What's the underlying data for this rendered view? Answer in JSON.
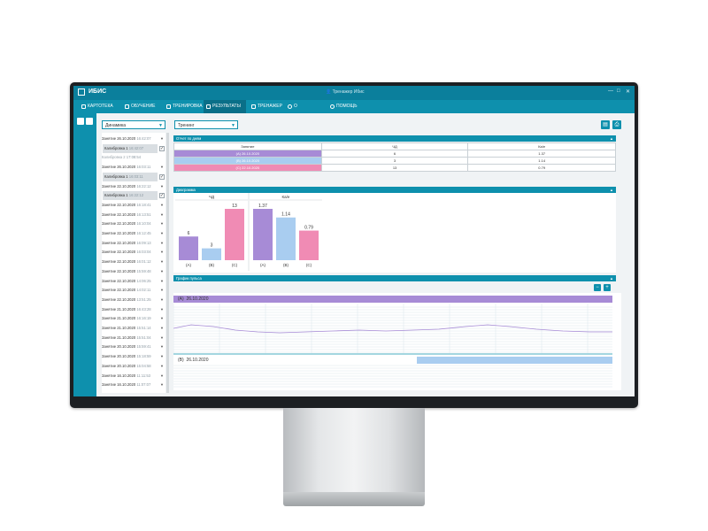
{
  "app": {
    "title": "ИБИС",
    "user": "Тренажер Ибис",
    "window_controls": [
      "—",
      "□",
      "✕"
    ]
  },
  "menu": [
    {
      "label": "КАРТОТЕКА",
      "icon": "card-icon"
    },
    {
      "label": "ОБУЧЕНИЕ",
      "icon": "book-icon"
    },
    {
      "label": "ТРЕНИРОВКА",
      "icon": "list-icon"
    },
    {
      "label": "РЕЗУЛЬТАТЫ",
      "icon": "chart-icon",
      "active": true
    },
    {
      "label": "ТРЕНАЖЕР",
      "icon": "device-icon"
    },
    {
      "label": "О ПРОГРАММЕ",
      "icon": "info-icon"
    },
    {
      "label": "ПОМОЩЬ",
      "icon": "help-icon"
    }
  ],
  "toolbar": {
    "mode_select": "Динамика",
    "type_select": "Тренинг"
  },
  "sessions": [
    {
      "name": "Занятие 26.10.2020",
      "time": "16:42:07",
      "type": "session"
    },
    {
      "name": "Калибровка 1",
      "time": "16:42:07",
      "type": "sub",
      "checked": true
    },
    {
      "name": "Калибровка 2",
      "time": "17:08:54",
      "type": "gray"
    },
    {
      "name": "Занятие 26.10.2020",
      "time": "16:03:11",
      "type": "session"
    },
    {
      "name": "Калибровка 1",
      "time": "16:03:11",
      "type": "sub",
      "checked": true
    },
    {
      "name": "Занятие 22.10.2020",
      "time": "16:22:12",
      "type": "session"
    },
    {
      "name": "Калибровка 1",
      "time": "16:22:12",
      "type": "sub",
      "checked": true
    },
    {
      "name": "Занятие 22.10.2020",
      "time": "16:18:41",
      "type": "session"
    },
    {
      "name": "Занятие 22.10.2020",
      "time": "16:13:51",
      "type": "session"
    },
    {
      "name": "Занятие 22.10.2020",
      "time": "16:10:04",
      "type": "session"
    },
    {
      "name": "Занятие 22.10.2020",
      "time": "16:12:45",
      "type": "session"
    },
    {
      "name": "Занятие 22.10.2020",
      "time": "16:09:13",
      "type": "session"
    },
    {
      "name": "Занятие 22.10.2020",
      "time": "16:03:04",
      "type": "session"
    },
    {
      "name": "Занятие 22.10.2020",
      "time": "16:01:12",
      "type": "session"
    },
    {
      "name": "Занятие 22.10.2020",
      "time": "15:59:48",
      "type": "session"
    },
    {
      "name": "Занятие 22.10.2020",
      "time": "14:06:25",
      "type": "session"
    },
    {
      "name": "Занятие 22.10.2020",
      "time": "14:02:11",
      "type": "session"
    },
    {
      "name": "Занятие 22.10.2020",
      "time": "13:51:25",
      "type": "session"
    },
    {
      "name": "Занятие 21.10.2020",
      "time": "16:43:28",
      "type": "session"
    },
    {
      "name": "Занятие 21.10.2020",
      "time": "16:16:19",
      "type": "session"
    },
    {
      "name": "Занятие 21.10.2020",
      "time": "15:51:14",
      "type": "session"
    },
    {
      "name": "Занятие 21.10.2020",
      "time": "15:51:04",
      "type": "session"
    },
    {
      "name": "Занятие 20.10.2020",
      "time": "15:59:41",
      "type": "session"
    },
    {
      "name": "Занятие 20.10.2020",
      "time": "15:18:59",
      "type": "session"
    },
    {
      "name": "Занятие 20.10.2020",
      "time": "15:04:58",
      "type": "session"
    },
    {
      "name": "Занятие 16.10.2020",
      "time": "11:11:53",
      "type": "session"
    },
    {
      "name": "Занятие 16.10.2020",
      "time": "11:07:07",
      "type": "session"
    }
  ],
  "report": {
    "title": "Отчет по дням",
    "headers": [
      "Занятие",
      "ЧД",
      "Ка/е"
    ],
    "rows": [
      {
        "label": "(A) 26.10.2020",
        "chd": "6",
        "kae": "1.37",
        "color": "#a78bd6"
      },
      {
        "label": "(B) 26.10.2020",
        "chd": "3",
        "kae": "1.14",
        "color": "#a9cdf0"
      },
      {
        "label": "(C) 22.10.2020",
        "chd": "13",
        "kae": "0.79",
        "color": "#f08bb4"
      }
    ]
  },
  "diagram": {
    "title": "Диаграмма"
  },
  "chart_data": [
    {
      "type": "bar",
      "title": "ЧД",
      "categories": [
        "(A)",
        "(B)",
        "(C)"
      ],
      "values": [
        6,
        3,
        13
      ],
      "value_labels": [
        "6",
        "3",
        "13"
      ],
      "colors": [
        "#a78bd6",
        "#a9cdf0",
        "#f08bb4"
      ],
      "ylim": [
        0,
        13
      ]
    },
    {
      "type": "bar",
      "title": "Ка/е",
      "categories": [
        "(A)",
        "(B)",
        "(C)"
      ],
      "values": [
        1.37,
        1.14,
        0.79
      ],
      "value_labels": [
        "1.37",
        "1.14",
        "0.79"
      ],
      "colors": [
        "#a78bd6",
        "#a9cdf0",
        "#f08bb4"
      ],
      "ylim": [
        0,
        1.37
      ]
    }
  ],
  "pulse": {
    "title": "График пульса",
    "zoom_out": "−",
    "zoom_in": "+",
    "rows": [
      {
        "label": "(A)",
        "date": "26.10.2020",
        "color": "#a78bd6"
      },
      {
        "label": "(B)",
        "date": "26.10.2020",
        "color": "#a9cdf0"
      }
    ]
  }
}
